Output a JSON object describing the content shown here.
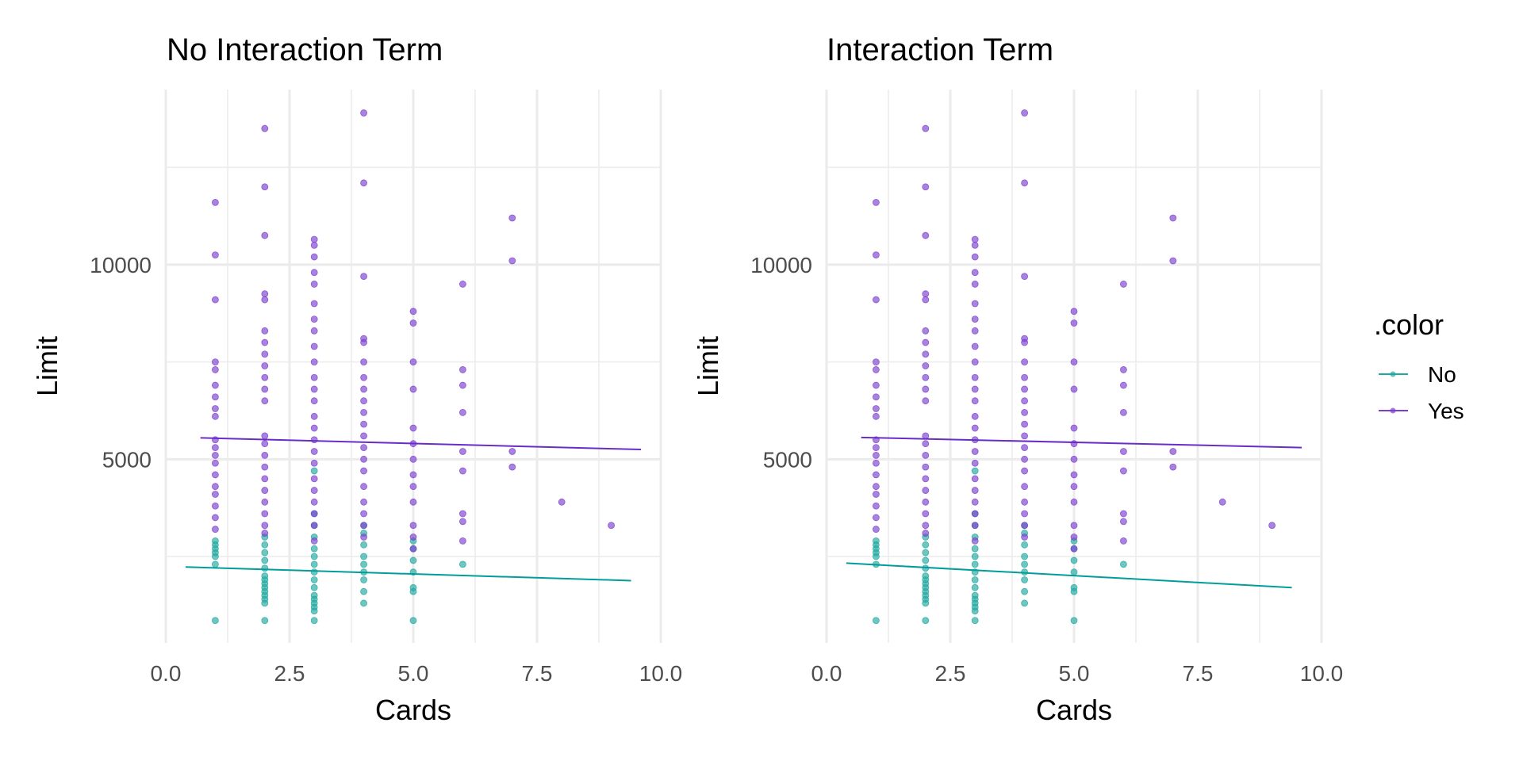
{
  "chart_data": [
    {
      "type": "scatter",
      "title": "No Interaction Term",
      "xlabel": "Cards",
      "ylabel": "Limit",
      "xlim": [
        0,
        10
      ],
      "ylim": [
        280,
        14500
      ],
      "xticks": [
        0,
        2.5,
        5,
        7.5,
        10
      ],
      "xtick_labels": [
        "0.0",
        "2.5",
        "5.0",
        "7.5",
        "10.0"
      ],
      "yticks": [
        5000,
        10000
      ],
      "ytick_labels": [
        "5000",
        "10000"
      ],
      "grid": true,
      "series": [
        {
          "name": "No",
          "color": "#20A8A0",
          "points": [
            [
              1,
              855
            ],
            [
              1,
              2300
            ],
            [
              1,
              2500
            ],
            [
              1,
              2600
            ],
            [
              1,
              2700
            ],
            [
              1,
              2800
            ],
            [
              1,
              2900
            ],
            [
              2,
              855
            ],
            [
              2,
              1300
            ],
            [
              2,
              1400
            ],
            [
              2,
              1500
            ],
            [
              2,
              1600
            ],
            [
              2,
              1700
            ],
            [
              2,
              1800
            ],
            [
              2,
              1900
            ],
            [
              2,
              2000
            ],
            [
              2,
              2200
            ],
            [
              2,
              2400
            ],
            [
              2,
              2600
            ],
            [
              2,
              2800
            ],
            [
              2,
              3000
            ],
            [
              3,
              855
            ],
            [
              3,
              1100
            ],
            [
              3,
              1200
            ],
            [
              3,
              1300
            ],
            [
              3,
              1400
            ],
            [
              3,
              1500
            ],
            [
              3,
              1700
            ],
            [
              3,
              1900
            ],
            [
              3,
              2100
            ],
            [
              3,
              2300
            ],
            [
              3,
              2500
            ],
            [
              3,
              2700
            ],
            [
              3,
              3000
            ],
            [
              3,
              3300
            ],
            [
              3,
              3600
            ],
            [
              3,
              4700
            ],
            [
              4,
              1300
            ],
            [
              4,
              1600
            ],
            [
              4,
              1900
            ],
            [
              4,
              2100
            ],
            [
              4,
              2300
            ],
            [
              4,
              2500
            ],
            [
              4,
              2800
            ],
            [
              4,
              3100
            ],
            [
              4,
              3300
            ],
            [
              5,
              855
            ],
            [
              5,
              1600
            ],
            [
              5,
              1700
            ],
            [
              5,
              2100
            ],
            [
              5,
              2400
            ],
            [
              5,
              2700
            ],
            [
              5,
              2900
            ],
            [
              6,
              2300
            ]
          ],
          "fit_line": {
            "x": [
              0.4,
              9.4
            ],
            "y": [
              2230,
              1880
            ]
          }
        },
        {
          "name": "Yes",
          "color": "#7B3FD0",
          "points": [
            [
              1,
              3200
            ],
            [
              1,
              3500
            ],
            [
              1,
              3800
            ],
            [
              1,
              4100
            ],
            [
              1,
              4300
            ],
            [
              1,
              4600
            ],
            [
              1,
              4900
            ],
            [
              1,
              5100
            ],
            [
              1,
              5300
            ],
            [
              1,
              5500
            ],
            [
              1,
              6100
            ],
            [
              1,
              6300
            ],
            [
              1,
              6600
            ],
            [
              1,
              6900
            ],
            [
              1,
              7300
            ],
            [
              1,
              7500
            ],
            [
              1,
              9100
            ],
            [
              1,
              10250
            ],
            [
              1,
              11600
            ],
            [
              2,
              3100
            ],
            [
              2,
              3300
            ],
            [
              2,
              3600
            ],
            [
              2,
              3900
            ],
            [
              2,
              4200
            ],
            [
              2,
              4500
            ],
            [
              2,
              4800
            ],
            [
              2,
              5100
            ],
            [
              2,
              5400
            ],
            [
              2,
              5600
            ],
            [
              2,
              6500
            ],
            [
              2,
              6800
            ],
            [
              2,
              7100
            ],
            [
              2,
              7400
            ],
            [
              2,
              7700
            ],
            [
              2,
              8000
            ],
            [
              2,
              8300
            ],
            [
              2,
              9100
            ],
            [
              2,
              9250
            ],
            [
              2,
              10750
            ],
            [
              2,
              12000
            ],
            [
              2,
              13500
            ],
            [
              3,
              2900
            ],
            [
              3,
              3300
            ],
            [
              3,
              3600
            ],
            [
              3,
              3900
            ],
            [
              3,
              4200
            ],
            [
              3,
              4500
            ],
            [
              3,
              4900
            ],
            [
              3,
              5200
            ],
            [
              3,
              5500
            ],
            [
              3,
              5800
            ],
            [
              3,
              6100
            ],
            [
              3,
              6500
            ],
            [
              3,
              6800
            ],
            [
              3,
              7100
            ],
            [
              3,
              7500
            ],
            [
              3,
              7900
            ],
            [
              3,
              8300
            ],
            [
              3,
              8600
            ],
            [
              3,
              9000
            ],
            [
              3,
              9500
            ],
            [
              3,
              9800
            ],
            [
              3,
              10200
            ],
            [
              3,
              10500
            ],
            [
              3,
              10650
            ],
            [
              4,
              3000
            ],
            [
              4,
              3300
            ],
            [
              4,
              3600
            ],
            [
              4,
              3900
            ],
            [
              4,
              4300
            ],
            [
              4,
              4700
            ],
            [
              4,
              5000
            ],
            [
              4,
              5300
            ],
            [
              4,
              5600
            ],
            [
              4,
              5900
            ],
            [
              4,
              6200
            ],
            [
              4,
              6500
            ],
            [
              4,
              6800
            ],
            [
              4,
              7100
            ],
            [
              4,
              7500
            ],
            [
              4,
              8000
            ],
            [
              4,
              8100
            ],
            [
              4,
              9700
            ],
            [
              4,
              12100
            ],
            [
              4,
              13900
            ],
            [
              5,
              2700
            ],
            [
              5,
              3000
            ],
            [
              5,
              3300
            ],
            [
              5,
              3900
            ],
            [
              5,
              4300
            ],
            [
              5,
              4600
            ],
            [
              5,
              5000
            ],
            [
              5,
              5400
            ],
            [
              5,
              5800
            ],
            [
              5,
              6800
            ],
            [
              5,
              7500
            ],
            [
              5,
              8500
            ],
            [
              5,
              8800
            ],
            [
              6,
              2900
            ],
            [
              6,
              3400
            ],
            [
              6,
              3600
            ],
            [
              6,
              4700
            ],
            [
              6,
              5200
            ],
            [
              6,
              6200
            ],
            [
              6,
              6900
            ],
            [
              6,
              7300
            ],
            [
              6,
              9500
            ],
            [
              7,
              4800
            ],
            [
              7,
              5200
            ],
            [
              7,
              10100
            ],
            [
              7,
              11200
            ],
            [
              8,
              3900
            ],
            [
              9,
              3300
            ]
          ],
          "fit_line": {
            "x": [
              0.7,
              9.6
            ],
            "y": [
              5550,
              5250
            ]
          }
        }
      ]
    },
    {
      "type": "scatter",
      "title": "Interaction Term",
      "xlabel": "Cards",
      "ylabel": "Limit",
      "xlim": [
        0,
        10
      ],
      "ylim": [
        280,
        14500
      ],
      "xticks": [
        0,
        2.5,
        5,
        7.5,
        10
      ],
      "xtick_labels": [
        "0.0",
        "2.5",
        "5.0",
        "7.5",
        "10.0"
      ],
      "yticks": [
        5000,
        10000
      ],
      "ytick_labels": [
        "5000",
        "10000"
      ],
      "grid": true,
      "series": [
        {
          "name": "No",
          "color": "#20A8A0",
          "same_points_as_panel": 0,
          "fit_line": {
            "x": [
              0.4,
              9.4
            ],
            "y": [
              2330,
              1700
            ]
          }
        },
        {
          "name": "Yes",
          "color": "#7B3FD0",
          "same_points_as_panel": 0,
          "fit_line": {
            "x": [
              0.7,
              9.6
            ],
            "y": [
              5560,
              5300
            ]
          }
        }
      ]
    }
  ],
  "legend": {
    "title": ".color",
    "position": "right",
    "items": [
      {
        "label": "No",
        "color": "#20A8A0"
      },
      {
        "label": "Yes",
        "color": "#7B3FD0"
      }
    ]
  }
}
